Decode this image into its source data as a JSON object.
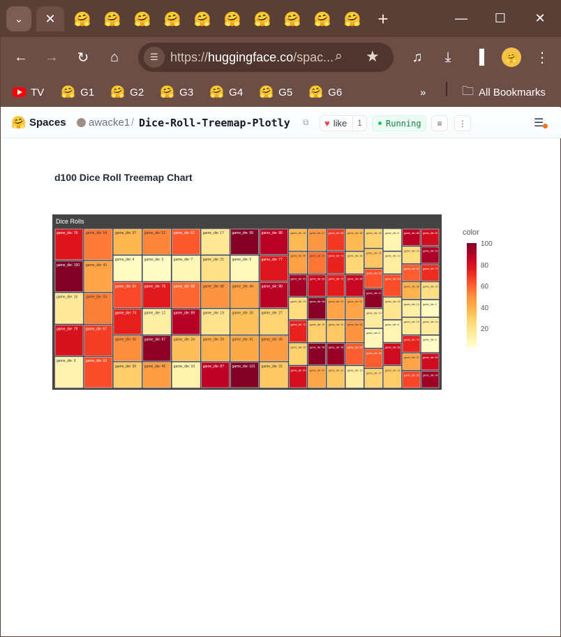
{
  "browser": {
    "tab_icon": "hugging-face-emoji",
    "inactive_tab_count": 10,
    "url_prefix": "https://",
    "url_host": "huggingface.co",
    "url_path": "/spac...",
    "bookmarks": [
      {
        "label": "TV",
        "icon": "youtube-icon"
      },
      {
        "label": "G1",
        "icon": "hugging-face-emoji"
      },
      {
        "label": "G2",
        "icon": "hugging-face-emoji"
      },
      {
        "label": "G3",
        "icon": "hugging-face-emoji"
      },
      {
        "label": "G4",
        "icon": "hugging-face-emoji"
      },
      {
        "label": "G5",
        "icon": "hugging-face-emoji"
      },
      {
        "label": "G6",
        "icon": "hugging-face-emoji"
      }
    ],
    "all_bookmarks": "All Bookmarks"
  },
  "hf": {
    "spaces": "Spaces",
    "owner": "awacke1",
    "slash": "/",
    "repo": "Dice-Roll-Treemap-Plotly",
    "like_label": "like",
    "like_count": "1",
    "status": "Running"
  },
  "main": {
    "title": "d100 Dice Roll Treemap Chart"
  },
  "chart_data": {
    "type": "treemap",
    "title": "Dice Rolls",
    "label_prefix": "game_die:",
    "colorscale": [
      "#ffffcc",
      "#ffeda0",
      "#fed976",
      "#feb24c",
      "#fd8d3c",
      "#fc4e2a",
      "#e31a1c",
      "#bd0026",
      "#800026"
    ],
    "color_range": [
      1,
      100
    ],
    "colorbar_title": "color",
    "colorbar_ticks": [
      100,
      80,
      60,
      40,
      20
    ],
    "columns": [
      [
        78,
        100,
        15,
        79,
        9
      ],
      [
        54,
        43,
        53,
        67,
        63
      ],
      [
        37,
        4,
        64,
        74,
        50,
        30
      ],
      [
        52,
        3,
        76,
        12,
        97,
        45
      ],
      [
        61,
        7,
        58,
        89,
        34,
        10
      ],
      [
        17,
        21,
        48,
        19,
        39,
        87
      ],
      [
        99,
        5,
        44,
        33,
        41,
        101
      ],
      [
        88,
        77,
        88,
        27,
        45,
        31
      ],
      [
        36,
        44,
        92,
        23,
        73,
        28,
        80
      ],
      [
        47,
        55,
        83,
        98,
        29,
        98,
        42
      ],
      [
        68,
        73,
        75,
        43,
        31,
        95,
        31
      ],
      [
        36,
        26,
        84,
        43,
        48,
        60,
        13
      ],
      [
        28,
        32,
        62,
        97,
        14,
        6,
        60,
        27
      ],
      [
        8,
        13,
        63,
        18,
        8,
        82,
        30
      ],
      [
        88,
        23,
        60,
        38,
        12,
        15,
        73,
        42,
        65
      ],
      [
        81,
        91,
        71,
        22,
        4,
        14,
        3,
        82,
        94
      ]
    ]
  }
}
